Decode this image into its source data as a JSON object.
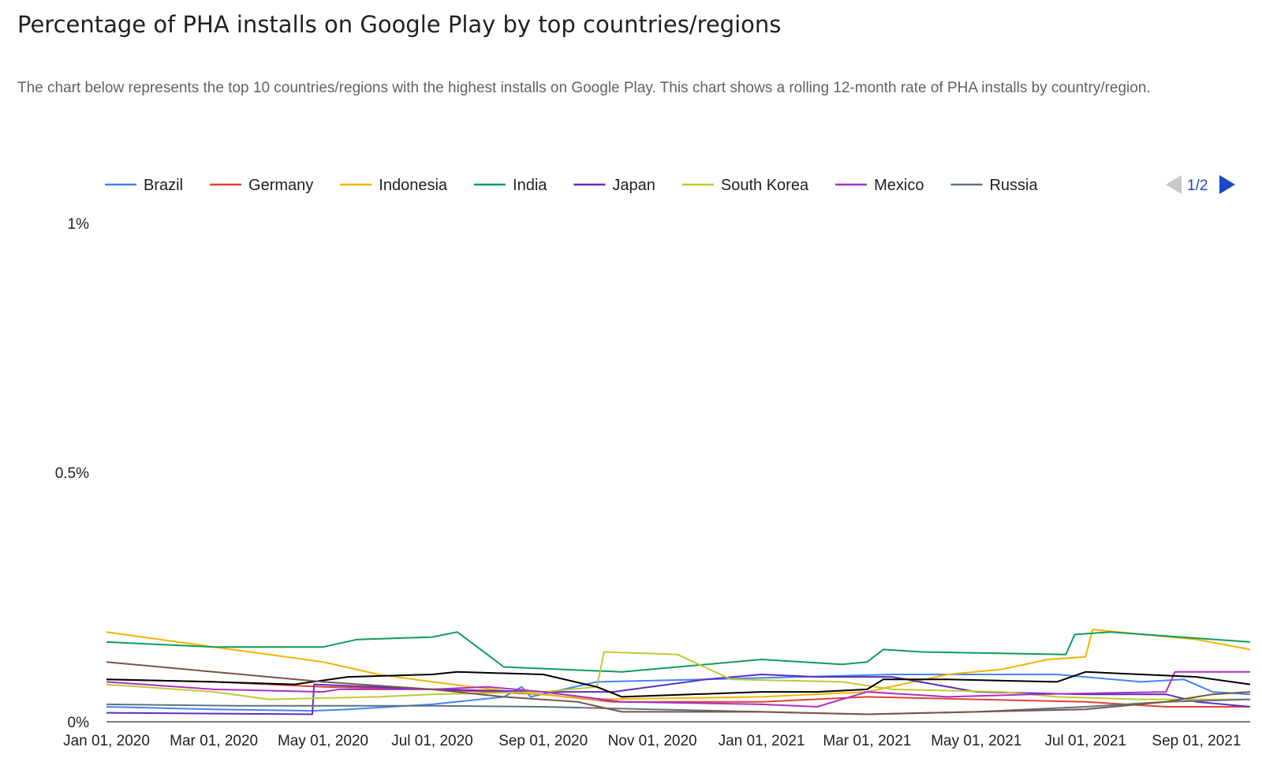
{
  "header": {
    "title": "Percentage of PHA installs on Google Play by top countries/regions",
    "description": "The chart below represents the top 10 countries/regions with the highest installs on Google Play. This chart shows a rolling 12-month rate of PHA installs by country/region."
  },
  "legend": {
    "page_label": "1/2"
  },
  "chart_data": {
    "type": "line",
    "title": "Percentage of PHA installs on Google Play by top countries/regions",
    "xlabel": "",
    "ylabel": "",
    "x_axis": {
      "min": "2020-01-01",
      "max": "2021-10-01",
      "tick_dates": [
        "2020-01-01",
        "2020-03-01",
        "2020-05-01",
        "2020-07-01",
        "2020-09-01",
        "2020-11-01",
        "2021-01-01",
        "2021-03-01",
        "2021-05-01",
        "2021-07-01",
        "2021-09-01"
      ],
      "tick_labels": [
        "Jan 01, 2020",
        "Mar 01, 2020",
        "May 01, 2020",
        "Jul 01, 2020",
        "Sep 01, 2020",
        "Nov 01, 2020",
        "Jan 01, 2021",
        "Mar 01, 2021",
        "May 01, 2021",
        "Jul 01, 2021",
        "Sep 01, 2021"
      ]
    },
    "y_axis": {
      "min": 0,
      "max": 1,
      "ticks": [
        0,
        0.5,
        1
      ],
      "tick_labels": [
        "0%",
        "0.5%",
        "1%"
      ]
    },
    "grid": false,
    "legend_position": "top",
    "series": [
      {
        "name": "Brazil",
        "color": "#4285f4",
        "points": [
          [
            "2020-01-01",
            0.03
          ],
          [
            "2020-03-01",
            0.025
          ],
          [
            "2020-04-25",
            0.022
          ],
          [
            "2020-05-15",
            0.025
          ],
          [
            "2020-07-01",
            0.035
          ],
          [
            "2020-08-10",
            0.05
          ],
          [
            "2020-08-20",
            0.07
          ],
          [
            "2020-08-25",
            0.05
          ],
          [
            "2020-10-01",
            0.08
          ],
          [
            "2020-12-01",
            0.085
          ],
          [
            "2021-03-15",
            0.095
          ],
          [
            "2021-06-15",
            0.095
          ],
          [
            "2021-08-01",
            0.08
          ],
          [
            "2021-08-25",
            0.085
          ],
          [
            "2021-09-10",
            0.06
          ],
          [
            "2021-10-01",
            0.055
          ]
        ]
      },
      {
        "name": "Germany",
        "color": "#db4437",
        "points": [
          [
            "2020-01-01",
            0.085
          ],
          [
            "2020-03-01",
            0.08
          ],
          [
            "2020-05-01",
            0.07
          ],
          [
            "2020-07-01",
            0.065
          ],
          [
            "2020-09-01",
            0.055
          ],
          [
            "2020-10-10",
            0.04
          ],
          [
            "2021-01-01",
            0.04
          ],
          [
            "2021-03-01",
            0.05
          ],
          [
            "2021-05-01",
            0.045
          ],
          [
            "2021-07-01",
            0.04
          ],
          [
            "2021-08-15",
            0.03
          ],
          [
            "2021-10-01",
            0.03
          ]
        ]
      },
      {
        "name": "Indonesia",
        "color": "#f4b400",
        "points": [
          [
            "2020-01-01",
            0.18
          ],
          [
            "2020-03-01",
            0.15
          ],
          [
            "2020-05-01",
            0.12
          ],
          [
            "2020-06-01",
            0.095
          ],
          [
            "2020-07-01",
            0.08
          ],
          [
            "2020-08-15",
            0.06
          ],
          [
            "2020-10-01",
            0.045
          ],
          [
            "2021-01-01",
            0.05
          ],
          [
            "2021-03-01",
            0.06
          ],
          [
            "2021-04-15",
            0.095
          ],
          [
            "2021-05-15",
            0.105
          ],
          [
            "2021-06-10",
            0.125
          ],
          [
            "2021-07-01",
            0.13
          ],
          [
            "2021-07-05",
            0.185
          ],
          [
            "2021-09-01",
            0.165
          ],
          [
            "2021-10-01",
            0.145
          ]
        ]
      },
      {
        "name": "India",
        "color": "#0f9d58",
        "points": [
          [
            "2020-01-01",
            0.16
          ],
          [
            "2020-03-01",
            0.15
          ],
          [
            "2020-05-01",
            0.15
          ],
          [
            "2020-05-20",
            0.165
          ],
          [
            "2020-07-01",
            0.17
          ],
          [
            "2020-07-15",
            0.18
          ],
          [
            "2020-08-10",
            0.11
          ],
          [
            "2020-10-15",
            0.1
          ],
          [
            "2021-01-01",
            0.125
          ],
          [
            "2021-02-15",
            0.115
          ],
          [
            "2021-03-01",
            0.12
          ],
          [
            "2021-03-10",
            0.145
          ],
          [
            "2021-04-01",
            0.14
          ],
          [
            "2021-06-20",
            0.135
          ],
          [
            "2021-06-25",
            0.175
          ],
          [
            "2021-07-15",
            0.18
          ],
          [
            "2021-10-01",
            0.16
          ]
        ]
      },
      {
        "name": "Japan",
        "color": "#5c2fbf",
        "points": [
          [
            "2020-01-01",
            0.018
          ],
          [
            "2020-04-25",
            0.015
          ],
          [
            "2020-04-26",
            0.075
          ],
          [
            "2020-07-01",
            0.065
          ],
          [
            "2020-09-01",
            0.06
          ],
          [
            "2020-10-10",
            0.06
          ],
          [
            "2020-12-01",
            0.085
          ],
          [
            "2021-01-01",
            0.095
          ],
          [
            "2021-02-01",
            0.09
          ],
          [
            "2021-03-15",
            0.09
          ],
          [
            "2021-05-01",
            0.06
          ],
          [
            "2021-07-01",
            0.055
          ],
          [
            "2021-08-15",
            0.055
          ],
          [
            "2021-09-01",
            0.04
          ],
          [
            "2021-10-01",
            0.03
          ]
        ]
      },
      {
        "name": "South Korea",
        "color": "#c0ca33",
        "points": [
          [
            "2020-01-01",
            0.075
          ],
          [
            "2020-03-01",
            0.06
          ],
          [
            "2020-04-01",
            0.045
          ],
          [
            "2020-06-01",
            0.05
          ],
          [
            "2020-07-01",
            0.055
          ],
          [
            "2020-09-01",
            0.06
          ],
          [
            "2020-10-01",
            0.07
          ],
          [
            "2020-10-05",
            0.14
          ],
          [
            "2020-11-15",
            0.135
          ],
          [
            "2020-12-15",
            0.085
          ],
          [
            "2021-02-15",
            0.08
          ],
          [
            "2021-03-15",
            0.065
          ],
          [
            "2021-05-15",
            0.06
          ],
          [
            "2021-06-15",
            0.05
          ],
          [
            "2021-08-01",
            0.045
          ],
          [
            "2021-10-01",
            0.045
          ]
        ]
      },
      {
        "name": "Mexico",
        "color": "#ab30c4",
        "points": [
          [
            "2020-01-01",
            0.08
          ],
          [
            "2020-03-01",
            0.065
          ],
          [
            "2020-05-01",
            0.06
          ],
          [
            "2020-05-10",
            0.065
          ],
          [
            "2020-07-01",
            0.065
          ],
          [
            "2020-08-01",
            0.07
          ],
          [
            "2020-09-01",
            0.06
          ],
          [
            "2020-10-15",
            0.04
          ],
          [
            "2021-01-01",
            0.035
          ],
          [
            "2021-02-01",
            0.03
          ],
          [
            "2021-03-01",
            0.06
          ],
          [
            "2021-04-15",
            0.05
          ],
          [
            "2021-06-01",
            0.055
          ],
          [
            "2021-08-15",
            0.06
          ],
          [
            "2021-08-20",
            0.1
          ],
          [
            "2021-10-01",
            0.1
          ]
        ]
      },
      {
        "name": "Russia",
        "color": "#5f7280",
        "points": [
          [
            "2020-01-01",
            0.035
          ],
          [
            "2020-03-15",
            0.032
          ],
          [
            "2020-07-01",
            0.032
          ],
          [
            "2020-09-01",
            0.03
          ],
          [
            "2020-11-01",
            0.025
          ],
          [
            "2021-01-01",
            0.02
          ],
          [
            "2021-03-01",
            0.015
          ],
          [
            "2021-05-01",
            0.02
          ],
          [
            "2021-07-01",
            0.03
          ],
          [
            "2021-08-15",
            0.04
          ],
          [
            "2021-10-01",
            0.045
          ]
        ]
      },
      {
        "color": "#000000",
        "points": [
          [
            "2020-01-01",
            0.085
          ],
          [
            "2020-03-01",
            0.08
          ],
          [
            "2020-04-15",
            0.075
          ],
          [
            "2020-05-15",
            0.09
          ],
          [
            "2020-07-01",
            0.095
          ],
          [
            "2020-07-15",
            0.1
          ],
          [
            "2020-09-01",
            0.095
          ],
          [
            "2020-10-01",
            0.07
          ],
          [
            "2020-10-15",
            0.05
          ],
          [
            "2021-01-01",
            0.06
          ],
          [
            "2021-02-01",
            0.06
          ],
          [
            "2021-03-01",
            0.065
          ],
          [
            "2021-03-10",
            0.085
          ],
          [
            "2021-04-15",
            0.085
          ],
          [
            "2021-06-15",
            0.08
          ],
          [
            "2021-07-01",
            0.1
          ],
          [
            "2021-09-01",
            0.09
          ],
          [
            "2021-10-01",
            0.075
          ]
        ]
      },
      {
        "color": "#795548",
        "points": [
          [
            "2020-01-01",
            0.12
          ],
          [
            "2020-03-01",
            0.1
          ],
          [
            "2020-05-01",
            0.08
          ],
          [
            "2020-07-01",
            0.065
          ],
          [
            "2020-08-10",
            0.05
          ],
          [
            "2020-09-20",
            0.04
          ],
          [
            "2020-10-15",
            0.02
          ],
          [
            "2021-01-01",
            0.02
          ],
          [
            "2021-03-01",
            0.015
          ],
          [
            "2021-05-01",
            0.02
          ],
          [
            "2021-07-01",
            0.025
          ],
          [
            "2021-08-15",
            0.04
          ],
          [
            "2021-09-10",
            0.055
          ],
          [
            "2021-10-01",
            0.06
          ]
        ]
      }
    ]
  }
}
